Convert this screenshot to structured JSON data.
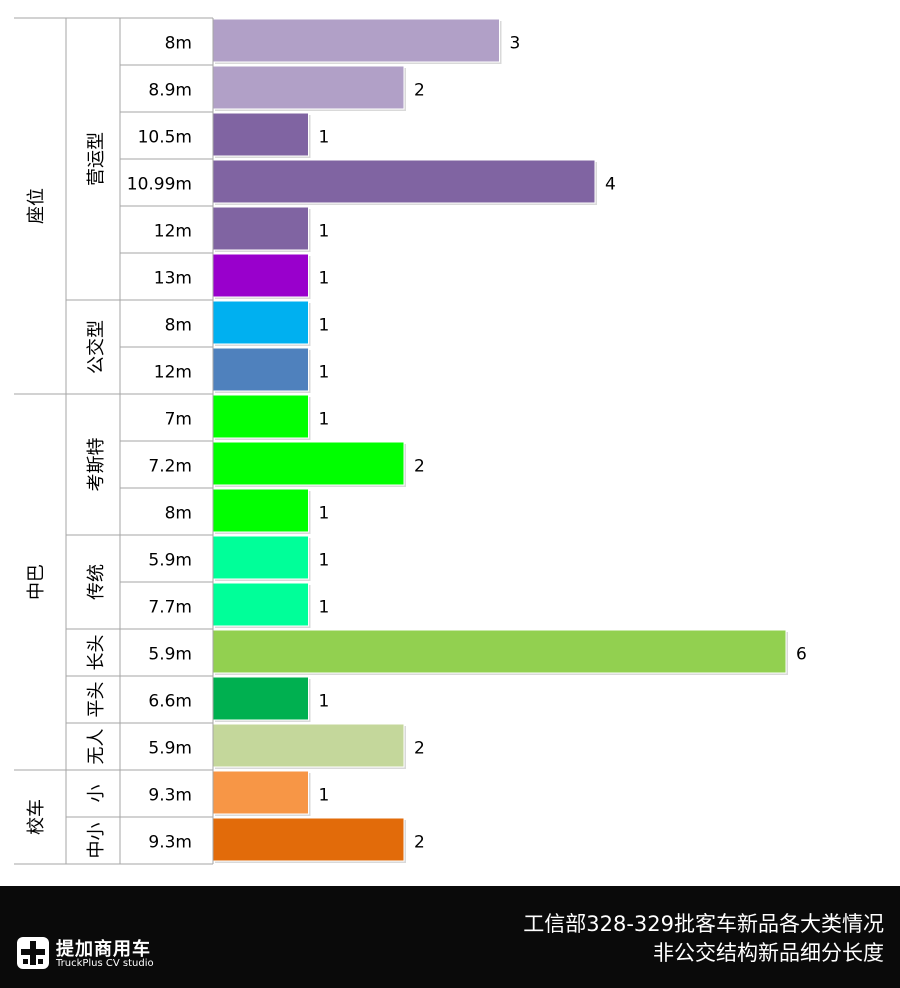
{
  "chart_data": {
    "type": "bar",
    "orientation": "horizontal",
    "title": "",
    "xlabel": "",
    "ylabel": "",
    "xlim": [
      0,
      6
    ],
    "grid": false,
    "legend": "none",
    "bars": [
      {
        "group": "座位",
        "subgroup": "营运型",
        "label": "8m",
        "value": 3,
        "color": "#b1a0c7"
      },
      {
        "group": "座位",
        "subgroup": "营运型",
        "label": "8.9m",
        "value": 2,
        "color": "#b1a0c7"
      },
      {
        "group": "座位",
        "subgroup": "营运型",
        "label": "10.5m",
        "value": 1,
        "color": "#8064a2"
      },
      {
        "group": "座位",
        "subgroup": "营运型",
        "label": "10.99m",
        "value": 4,
        "color": "#8064a2"
      },
      {
        "group": "座位",
        "subgroup": "营运型",
        "label": "12m",
        "value": 1,
        "color": "#8064a2"
      },
      {
        "group": "座位",
        "subgroup": "营运型",
        "label": "13m",
        "value": 1,
        "color": "#9900cc"
      },
      {
        "group": "座位",
        "subgroup": "公交型",
        "label": "8m",
        "value": 1,
        "color": "#00b0f0"
      },
      {
        "group": "座位",
        "subgroup": "公交型",
        "label": "12m",
        "value": 1,
        "color": "#4f81bd"
      },
      {
        "group": "中巴",
        "subgroup": "考斯特",
        "label": "7m",
        "value": 1,
        "color": "#00ff00"
      },
      {
        "group": "中巴",
        "subgroup": "考斯特",
        "label": "7.2m",
        "value": 2,
        "color": "#00ff00"
      },
      {
        "group": "中巴",
        "subgroup": "考斯特",
        "label": "8m",
        "value": 1,
        "color": "#00ff00"
      },
      {
        "group": "中巴",
        "subgroup": "传统",
        "label": "5.9m",
        "value": 1,
        "color": "#00ff99"
      },
      {
        "group": "中巴",
        "subgroup": "传统",
        "label": "7.7m",
        "value": 1,
        "color": "#00ff99"
      },
      {
        "group": "中巴",
        "subgroup": "长头",
        "label": "5.9m",
        "value": 6,
        "color": "#92d050"
      },
      {
        "group": "中巴",
        "subgroup": "平头",
        "label": "6.6m",
        "value": 1,
        "color": "#00b050"
      },
      {
        "group": "中巴",
        "subgroup": "无人",
        "label": "5.9m",
        "value": 2,
        "color": "#c4d79b"
      },
      {
        "group": "校车",
        "subgroup": "小",
        "label": "9.3m",
        "value": 1,
        "color": "#f79646"
      },
      {
        "group": "校车",
        "subgroup": "中小",
        "label": "9.3m",
        "value": 2,
        "color": "#e26b0a"
      }
    ]
  },
  "footer": {
    "logo_name": "提加商用车",
    "logo_sub": "TruckPlus CV studio",
    "title_line1": "工信部328-329批客车新品各大类情况",
    "title_line2": "非公交结构新品细分长度"
  }
}
